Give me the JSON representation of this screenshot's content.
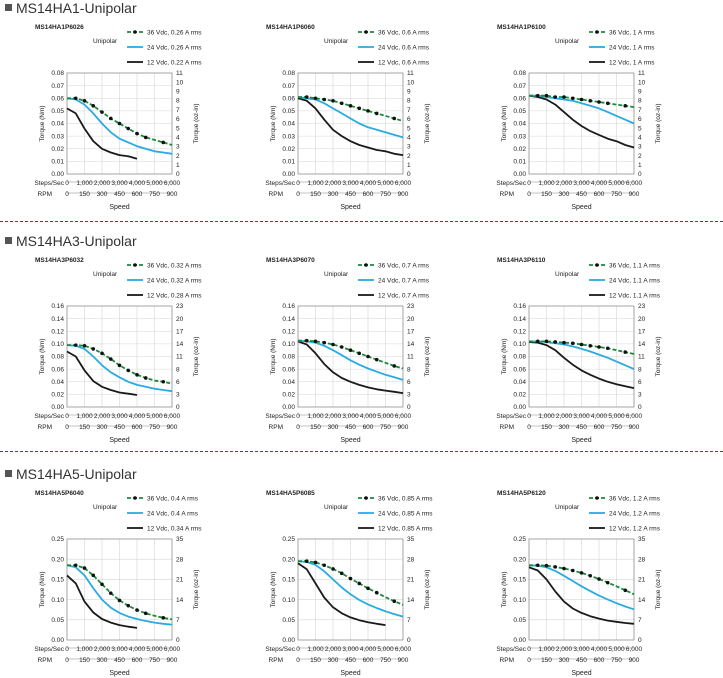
{
  "units": {
    "speed_label": "Speed",
    "steps_label": "Steps/Sec",
    "rpm_label": "RPM",
    "torque_nm_label": "Torque (Nm)",
    "torque_ozin_label": "Torque (oz-in)",
    "steps_ticks": [
      "0",
      "1,000",
      "2,000",
      "3,000",
      "4,000",
      "5,000",
      "6,000"
    ],
    "rpm_ticks": [
      "0",
      "150",
      "300",
      "450",
      "600",
      "750",
      "900"
    ]
  },
  "colors": {
    "v36": "#1a8a3a",
    "v24": "#29abe2",
    "v12": "#1a1a1a",
    "divider": "#1f4e9e"
  },
  "sections": [
    {
      "title": "MS14HA1-Unipolar",
      "charts": [
        {
          "model": "MS14HA1P6026",
          "mode": "Unipolar",
          "legend": [
            "36 Vdc, 0.26 A rms",
            "24 Vdc, 0.26 A rms",
            "12 Vdc, 0.22 A rms"
          ]
        },
        {
          "model": "MS14HA1P6060",
          "mode": "Unipolar",
          "legend": [
            "36 Vdc, 0.6 A rms",
            "24 Vdc, 0.6 A rms",
            "12 Vdc, 0.6 A rms"
          ]
        },
        {
          "model": "MS14HA1P6100",
          "mode": "Unipolar",
          "legend": [
            "36 Vdc, 1 A rms",
            "24 Vdc, 1 A rms",
            "12 Vdc, 1 A rms"
          ]
        }
      ]
    },
    {
      "title": "MS14HA3-Unipolar",
      "charts": [
        {
          "model": "MS14HA3P6032",
          "mode": "Unipolar",
          "legend": [
            "36 Vdc, 0.32 A rms",
            "24 Vdc, 0.32 A rms",
            "12 Vdc, 0.28 A rms"
          ]
        },
        {
          "model": "MS14HA3P6070",
          "mode": "Unipolar",
          "legend": [
            "36 Vdc, 0.7 A rms",
            "24 Vdc, 0.7 A rms",
            "12 Vdc, 0.7 A rms"
          ]
        },
        {
          "model": "MS14HA3P6110",
          "mode": "Unipolar",
          "legend": [
            "36 Vdc, 1.1 A rms",
            "24 Vdc, 1.1 A rms",
            "12 Vdc, 1.1 A rms"
          ]
        }
      ]
    },
    {
      "title": "MS14HA5-Unipolar",
      "charts": [
        {
          "model": "MS14HA5P6040",
          "mode": "Unipolar",
          "legend": [
            "36 Vdc, 0.4 A rms",
            "24 Vdc, 0.4 A rms",
            "12 Vdc, 0.34 A rms"
          ]
        },
        {
          "model": "MS14HA5P6085",
          "mode": "Unipolar",
          "legend": [
            "36 Vdc, 0.85 A rms",
            "24 Vdc, 0.85 A rms",
            "12 Vdc, 0.85 A rms"
          ]
        },
        {
          "model": "MS14HA5P6120",
          "mode": "Unipolar",
          "legend": [
            "36 Vdc, 1.2 A rms",
            "24 Vdc, 1.2 A rms",
            "12 Vdc, 1.2 A rms"
          ]
        }
      ]
    }
  ],
  "chart_data": [
    {
      "type": "line",
      "title": "MS14HA1P6026",
      "xlabel": "Speed",
      "ylabel": "Torque (Nm)",
      "y2label": "Torque (oz-in)",
      "xlim": [
        0,
        6000
      ],
      "ylim": [
        0,
        0.08
      ],
      "y2lim": [
        0,
        11
      ],
      "yticks": [
        "0.00",
        "0.01",
        "0.02",
        "0.03",
        "0.04",
        "0.05",
        "0.06",
        "0.07",
        "0.08"
      ],
      "y2ticks": [
        "0",
        "1",
        "2",
        "3",
        "4",
        "5",
        "6",
        "7",
        "8",
        "9",
        "10",
        "11"
      ],
      "x": [
        0,
        500,
        1000,
        1500,
        2000,
        2500,
        3000,
        3500,
        4000,
        4500,
        5000,
        5500,
        6000
      ],
      "series": [
        {
          "name": "36 Vdc, 0.26 A rms",
          "values": [
            0.06,
            0.06,
            0.058,
            0.054,
            0.049,
            0.044,
            0.04,
            0.036,
            0.032,
            0.029,
            0.027,
            0.025,
            0.023
          ]
        },
        {
          "name": "24 Vdc, 0.26 A rms",
          "values": [
            0.06,
            0.059,
            0.055,
            0.048,
            0.04,
            0.033,
            0.028,
            0.025,
            0.022,
            0.02,
            0.018,
            0.017,
            0.016
          ]
        },
        {
          "name": "12 Vdc, 0.22 A rms",
          "values": [
            0.052,
            0.048,
            0.036,
            0.026,
            0.02,
            0.017,
            0.015,
            0.014,
            0.012,
            null,
            null,
            null,
            null
          ]
        }
      ]
    },
    {
      "type": "line",
      "title": "MS14HA1P6060",
      "xlabel": "Speed",
      "ylabel": "Torque (Nm)",
      "y2label": "Torque (oz-in)",
      "xlim": [
        0,
        6000
      ],
      "ylim": [
        0,
        0.08
      ],
      "y2lim": [
        0,
        11
      ],
      "yticks": [
        "0.00",
        "0.01",
        "0.02",
        "0.03",
        "0.04",
        "0.05",
        "0.06",
        "0.07",
        "0.08"
      ],
      "y2ticks": [
        "0",
        "1",
        "2",
        "3",
        "4",
        "5",
        "6",
        "7",
        "8",
        "9",
        "10",
        "11"
      ],
      "x": [
        0,
        500,
        1000,
        1500,
        2000,
        2500,
        3000,
        3500,
        4000,
        4500,
        5000,
        5500,
        6000
      ],
      "series": [
        {
          "name": "36 Vdc, 0.6 A rms",
          "values": [
            0.061,
            0.061,
            0.06,
            0.059,
            0.058,
            0.056,
            0.054,
            0.052,
            0.05,
            0.048,
            0.046,
            0.044,
            0.042
          ]
        },
        {
          "name": "24 Vdc, 0.6 A rms",
          "values": [
            0.061,
            0.06,
            0.059,
            0.056,
            0.052,
            0.048,
            0.044,
            0.04,
            0.037,
            0.035,
            0.033,
            0.031,
            0.029
          ]
        },
        {
          "name": "12 Vdc, 0.6 A rms",
          "values": [
            0.06,
            0.058,
            0.052,
            0.043,
            0.035,
            0.03,
            0.026,
            0.023,
            0.021,
            0.019,
            0.018,
            0.016,
            0.015
          ]
        }
      ]
    },
    {
      "type": "line",
      "title": "MS14HA1P6100",
      "xlabel": "Speed",
      "ylabel": "Torque (Nm)",
      "y2label": "Torque (oz-in)",
      "xlim": [
        0,
        6000
      ],
      "ylim": [
        0,
        0.08
      ],
      "y2lim": [
        0,
        11
      ],
      "yticks": [
        "0.00",
        "0.01",
        "0.02",
        "0.03",
        "0.04",
        "0.05",
        "0.06",
        "0.07",
        "0.08"
      ],
      "y2ticks": [
        "0",
        "1",
        "2",
        "3",
        "4",
        "5",
        "6",
        "7",
        "8",
        "9",
        "10",
        "11"
      ],
      "x": [
        0,
        500,
        1000,
        1500,
        2000,
        2500,
        3000,
        3500,
        4000,
        4500,
        5000,
        5500,
        6000
      ],
      "series": [
        {
          "name": "36 Vdc, 1 A rms",
          "values": [
            0.062,
            0.062,
            0.062,
            0.061,
            0.061,
            0.06,
            0.059,
            0.058,
            0.057,
            0.056,
            0.055,
            0.054,
            0.053
          ]
        },
        {
          "name": "24 Vdc, 1 A rms",
          "values": [
            0.062,
            0.062,
            0.061,
            0.06,
            0.059,
            0.058,
            0.056,
            0.054,
            0.052,
            0.049,
            0.046,
            0.043,
            0.04
          ]
        },
        {
          "name": "12 Vdc, 1 A rms",
          "values": [
            0.062,
            0.061,
            0.059,
            0.055,
            0.049,
            0.043,
            0.038,
            0.034,
            0.031,
            0.028,
            0.026,
            0.023,
            0.021
          ]
        }
      ]
    },
    {
      "type": "line",
      "title": "MS14HA3P6032",
      "xlabel": "Speed",
      "ylabel": "Torque (Nm)",
      "y2label": "Torque (oz-in)",
      "xlim": [
        0,
        6000
      ],
      "ylim": [
        0,
        0.16
      ],
      "y2lim": [
        0,
        23
      ],
      "yticks": [
        "0.00",
        "0.02",
        "0.04",
        "0.06",
        "0.08",
        "0.10",
        "0.12",
        "0.14",
        "0.16"
      ],
      "y2ticks": [
        "0",
        "3",
        "6",
        "8",
        "11",
        "14",
        "17",
        "20",
        "23"
      ],
      "x": [
        0,
        500,
        1000,
        1500,
        2000,
        2500,
        3000,
        3500,
        4000,
        4500,
        5000,
        5500,
        6000
      ],
      "series": [
        {
          "name": "36 Vdc, 0.32 A rms",
          "values": [
            0.098,
            0.098,
            0.097,
            0.092,
            0.085,
            0.076,
            0.066,
            0.058,
            0.051,
            0.046,
            0.042,
            0.04,
            0.037
          ]
        },
        {
          "name": "24 Vdc, 0.32 A rms",
          "values": [
            0.098,
            0.097,
            0.092,
            0.08,
            0.066,
            0.055,
            0.047,
            0.04,
            0.035,
            0.032,
            0.029,
            0.027,
            0.025
          ]
        },
        {
          "name": "12 Vdc, 0.28 A rms",
          "values": [
            0.088,
            0.08,
            0.058,
            0.041,
            0.032,
            0.027,
            0.023,
            0.021,
            0.019,
            null,
            null,
            null,
            null
          ]
        }
      ]
    },
    {
      "type": "line",
      "title": "MS14HA3P6070",
      "xlabel": "Speed",
      "ylabel": "Torque (Nm)",
      "y2label": "Torque (oz-in)",
      "xlim": [
        0,
        6000
      ],
      "ylim": [
        0,
        0.16
      ],
      "y2lim": [
        0,
        23
      ],
      "yticks": [
        "0.00",
        "0.02",
        "0.04",
        "0.06",
        "0.08",
        "0.10",
        "0.12",
        "0.14",
        "0.16"
      ],
      "y2ticks": [
        "0",
        "3",
        "6",
        "8",
        "11",
        "14",
        "17",
        "20",
        "23"
      ],
      "x": [
        0,
        500,
        1000,
        1500,
        2000,
        2500,
        3000,
        3500,
        4000,
        4500,
        5000,
        5500,
        6000
      ],
      "series": [
        {
          "name": "36 Vdc, 0.7 A rms",
          "values": [
            0.105,
            0.105,
            0.104,
            0.102,
            0.099,
            0.095,
            0.09,
            0.085,
            0.08,
            0.075,
            0.07,
            0.065,
            0.061
          ]
        },
        {
          "name": "24 Vdc, 0.7 A rms",
          "values": [
            0.105,
            0.104,
            0.102,
            0.097,
            0.09,
            0.082,
            0.074,
            0.067,
            0.061,
            0.056,
            0.051,
            0.047,
            0.043
          ]
        },
        {
          "name": "12 Vdc, 0.7 A rms",
          "values": [
            0.104,
            0.099,
            0.085,
            0.068,
            0.055,
            0.046,
            0.04,
            0.035,
            0.031,
            0.028,
            0.026,
            0.024,
            0.022
          ]
        }
      ]
    },
    {
      "type": "line",
      "title": "MS14HA3P6110",
      "xlabel": "Speed",
      "ylabel": "Torque (Nm)",
      "y2label": "Torque (oz-in)",
      "xlim": [
        0,
        6000
      ],
      "ylim": [
        0,
        0.16
      ],
      "y2lim": [
        0,
        23
      ],
      "yticks": [
        "0.00",
        "0.02",
        "0.04",
        "0.06",
        "0.08",
        "0.10",
        "0.12",
        "0.14",
        "0.16"
      ],
      "y2ticks": [
        "0",
        "3",
        "6",
        "8",
        "11",
        "14",
        "17",
        "20",
        "23"
      ],
      "x": [
        0,
        500,
        1000,
        1500,
        2000,
        2500,
        3000,
        3500,
        4000,
        4500,
        5000,
        5500,
        6000
      ],
      "series": [
        {
          "name": "36 Vdc, 1.1 A rms",
          "values": [
            0.104,
            0.104,
            0.104,
            0.103,
            0.102,
            0.101,
            0.099,
            0.097,
            0.095,
            0.093,
            0.09,
            0.087,
            0.084
          ]
        },
        {
          "name": "24 Vdc, 1.1 A rms",
          "values": [
            0.104,
            0.104,
            0.103,
            0.101,
            0.099,
            0.096,
            0.092,
            0.088,
            0.083,
            0.078,
            0.072,
            0.066,
            0.06
          ]
        },
        {
          "name": "12 Vdc, 1.1 A rms",
          "values": [
            0.103,
            0.102,
            0.098,
            0.09,
            0.078,
            0.067,
            0.058,
            0.051,
            0.045,
            0.04,
            0.036,
            0.033,
            0.03
          ]
        }
      ]
    },
    {
      "type": "line",
      "title": "MS14HA5P6040",
      "xlabel": "Speed",
      "ylabel": "Torque (Nm)",
      "y2label": "Torque (oz-in)",
      "xlim": [
        0,
        6000
      ],
      "ylim": [
        0,
        0.25
      ],
      "y2lim": [
        0,
        35
      ],
      "yticks": [
        "0.00",
        "0.05",
        "0.10",
        "0.15",
        "0.20",
        "0.25"
      ],
      "y2ticks": [
        "0",
        "7",
        "14",
        "21",
        "28",
        "35"
      ],
      "x": [
        0,
        500,
        1000,
        1500,
        2000,
        2500,
        3000,
        3500,
        4000,
        4500,
        5000,
        5500,
        6000
      ],
      "series": [
        {
          "name": "36 Vdc, 0.4 A rms",
          "values": [
            0.185,
            0.185,
            0.178,
            0.16,
            0.138,
            0.116,
            0.098,
            0.085,
            0.074,
            0.066,
            0.06,
            0.055,
            0.051
          ]
        },
        {
          "name": "24 Vdc, 0.4 A rms",
          "values": [
            0.185,
            0.18,
            0.16,
            0.128,
            0.1,
            0.08,
            0.067,
            0.058,
            0.052,
            0.047,
            0.043,
            0.04,
            0.038
          ]
        },
        {
          "name": "12 Vdc, 0.34 A rms",
          "values": [
            0.16,
            0.14,
            0.095,
            0.068,
            0.052,
            0.043,
            0.037,
            0.033,
            0.03,
            null,
            null,
            null,
            null
          ]
        }
      ]
    },
    {
      "type": "line",
      "title": "MS14HA5P6085",
      "xlabel": "Speed",
      "ylabel": "Torque (Nm)",
      "y2label": "Torque (oz-in)",
      "xlim": [
        0,
        6000
      ],
      "ylim": [
        0,
        0.25
      ],
      "y2lim": [
        0,
        35
      ],
      "yticks": [
        "0.00",
        "0.05",
        "0.10",
        "0.15",
        "0.20",
        "0.25"
      ],
      "y2ticks": [
        "0",
        "7",
        "14",
        "21",
        "28",
        "35"
      ],
      "x": [
        0,
        500,
        1000,
        1500,
        2000,
        2500,
        3000,
        3500,
        4000,
        4500,
        5000,
        5500,
        6000
      ],
      "series": [
        {
          "name": "36 Vdc, 0.85 A rms",
          "values": [
            0.195,
            0.195,
            0.192,
            0.185,
            0.176,
            0.165,
            0.152,
            0.14,
            0.128,
            0.117,
            0.106,
            0.096,
            0.087
          ]
        },
        {
          "name": "24 Vdc, 0.85 A rms",
          "values": [
            0.195,
            0.193,
            0.186,
            0.17,
            0.15,
            0.13,
            0.113,
            0.099,
            0.088,
            0.079,
            0.071,
            0.064,
            0.058
          ]
        },
        {
          "name": "12 Vdc, 0.85 A rms",
          "values": [
            0.19,
            0.175,
            0.14,
            0.105,
            0.081,
            0.066,
            0.056,
            0.049,
            0.044,
            0.04,
            0.037,
            null,
            null
          ]
        }
      ]
    },
    {
      "type": "line",
      "title": "MS14HA5P6120",
      "xlabel": "Speed",
      "ylabel": "Torque (Nm)",
      "y2label": "Torque (oz-in)",
      "xlim": [
        0,
        6000
      ],
      "ylim": [
        0,
        0.25
      ],
      "y2lim": [
        0,
        35
      ],
      "yticks": [
        "0.00",
        "0.05",
        "0.10",
        "0.15",
        "0.20",
        "0.25"
      ],
      "y2ticks": [
        "0",
        "7",
        "14",
        "21",
        "28",
        "35"
      ],
      "x": [
        0,
        500,
        1000,
        1500,
        2000,
        2500,
        3000,
        3500,
        4000,
        4500,
        5000,
        5500,
        6000
      ],
      "series": [
        {
          "name": "36 Vdc, 1.2 A rms",
          "values": [
            0.185,
            0.185,
            0.184,
            0.181,
            0.177,
            0.172,
            0.166,
            0.159,
            0.151,
            0.142,
            0.133,
            0.123,
            0.113
          ]
        },
        {
          "name": "24 Vdc, 1.2 A rms",
          "values": [
            0.185,
            0.184,
            0.18,
            0.171,
            0.159,
            0.146,
            0.133,
            0.121,
            0.11,
            0.1,
            0.091,
            0.083,
            0.076
          ]
        },
        {
          "name": "12 Vdc, 1.2 A rms",
          "values": [
            0.18,
            0.172,
            0.15,
            0.12,
            0.095,
            0.078,
            0.067,
            0.059,
            0.053,
            0.048,
            0.045,
            0.042,
            0.04
          ]
        }
      ]
    }
  ]
}
